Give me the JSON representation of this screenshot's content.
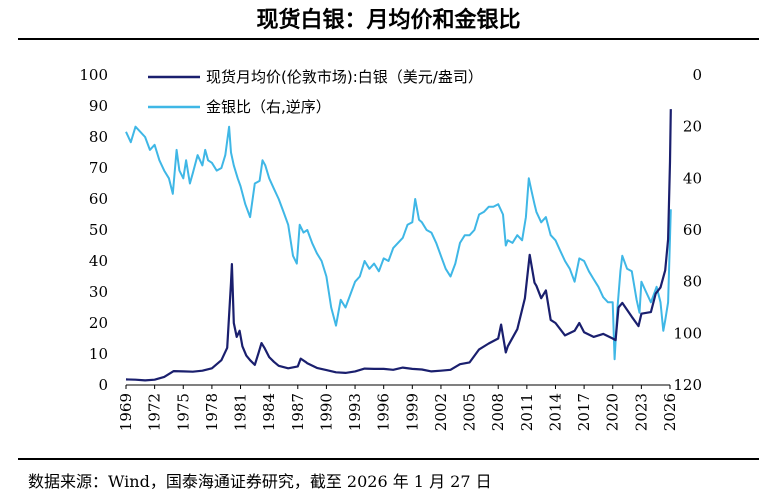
{
  "title": "现货白银：月均价和金银比",
  "source_note": "数据来源：Wind，国泰海通证券研究，截至 2026 年 1 月 27 日",
  "chart_data": {
    "type": "line",
    "x_tick_labels": [
      "1969",
      "1972",
      "1975",
      "1978",
      "1981",
      "1984",
      "1987",
      "1990",
      "1993",
      "1996",
      "1999",
      "2002",
      "2005",
      "2008",
      "2011",
      "2014",
      "2017",
      "2020",
      "2023",
      "2026"
    ],
    "y_left": {
      "ticks": [
        "0",
        "10",
        "20",
        "30",
        "40",
        "50",
        "60",
        "70",
        "80",
        "90",
        "100"
      ],
      "ylim": [
        0,
        100
      ]
    },
    "y_right": {
      "ticks": [
        "0",
        "20",
        "40",
        "60",
        "80",
        "100",
        "120"
      ],
      "ylim": [
        0,
        120
      ],
      "inverted": true
    },
    "series": [
      {
        "name": "现货月均价(伦敦市场):白银（美元/盎司）",
        "axis": "left",
        "color": "#1a1f6e",
        "points": [
          [
            1969.0,
            1.8
          ],
          [
            1970.0,
            1.7
          ],
          [
            1971.0,
            1.5
          ],
          [
            1972.0,
            1.7
          ],
          [
            1973.0,
            2.6
          ],
          [
            1974.0,
            4.5
          ],
          [
            1975.0,
            4.4
          ],
          [
            1976.0,
            4.3
          ],
          [
            1977.0,
            4.6
          ],
          [
            1978.0,
            5.4
          ],
          [
            1979.0,
            8.0
          ],
          [
            1979.6,
            12.0
          ],
          [
            1980.0,
            33.0
          ],
          [
            1980.1,
            39.0
          ],
          [
            1980.3,
            20.0
          ],
          [
            1980.6,
            15.5
          ],
          [
            1980.9,
            17.5
          ],
          [
            1981.2,
            12.5
          ],
          [
            1981.6,
            9.5
          ],
          [
            1982.0,
            8.0
          ],
          [
            1982.5,
            6.5
          ],
          [
            1982.9,
            10.5
          ],
          [
            1983.2,
            13.5
          ],
          [
            1983.5,
            12.0
          ],
          [
            1984.0,
            9.0
          ],
          [
            1984.5,
            7.5
          ],
          [
            1985.0,
            6.2
          ],
          [
            1986.0,
            5.4
          ],
          [
            1987.0,
            6.0
          ],
          [
            1987.3,
            8.5
          ],
          [
            1987.8,
            7.5
          ],
          [
            1988.0,
            7.0
          ],
          [
            1989.0,
            5.5
          ],
          [
            1990.0,
            4.8
          ],
          [
            1991.0,
            4.1
          ],
          [
            1992.0,
            3.9
          ],
          [
            1993.0,
            4.4
          ],
          [
            1994.0,
            5.3
          ],
          [
            1995.0,
            5.2
          ],
          [
            1996.0,
            5.2
          ],
          [
            1997.0,
            4.9
          ],
          [
            1998.0,
            5.6
          ],
          [
            1999.0,
            5.2
          ],
          [
            2000.0,
            5.0
          ],
          [
            2001.0,
            4.4
          ],
          [
            2002.0,
            4.6
          ],
          [
            2003.0,
            4.9
          ],
          [
            2004.0,
            6.7
          ],
          [
            2005.0,
            7.3
          ],
          [
            2006.0,
            11.5
          ],
          [
            2007.0,
            13.4
          ],
          [
            2008.0,
            15.0
          ],
          [
            2008.3,
            19.5
          ],
          [
            2008.8,
            10.5
          ],
          [
            2009.0,
            12.5
          ],
          [
            2010.0,
            18.0
          ],
          [
            2010.8,
            28.0
          ],
          [
            2011.3,
            42.0
          ],
          [
            2011.8,
            33.0
          ],
          [
            2012.0,
            32.0
          ],
          [
            2012.5,
            28.0
          ],
          [
            2013.0,
            30.5
          ],
          [
            2013.5,
            21.0
          ],
          [
            2014.0,
            20.0
          ],
          [
            2015.0,
            16.0
          ],
          [
            2016.0,
            17.5
          ],
          [
            2016.5,
            20.0
          ],
          [
            2017.0,
            17.0
          ],
          [
            2018.0,
            15.5
          ],
          [
            2019.0,
            16.5
          ],
          [
            2020.0,
            15.0
          ],
          [
            2020.3,
            14.5
          ],
          [
            2020.6,
            25.0
          ],
          [
            2021.0,
            26.5
          ],
          [
            2022.0,
            22.0
          ],
          [
            2022.7,
            19.0
          ],
          [
            2023.0,
            23.0
          ],
          [
            2024.0,
            23.5
          ],
          [
            2024.5,
            29.5
          ],
          [
            2025.0,
            31.5
          ],
          [
            2025.5,
            37.0
          ],
          [
            2025.8,
            47.0
          ],
          [
            2026.0,
            72.0
          ],
          [
            2026.08,
            89.0
          ]
        ]
      },
      {
        "name": "金银比（右,逆序）",
        "axis": "right",
        "color": "#3fb7e6",
        "points": [
          [
            1969.0,
            22
          ],
          [
            1969.5,
            26
          ],
          [
            1970.0,
            20
          ],
          [
            1970.5,
            22
          ],
          [
            1971.0,
            24
          ],
          [
            1971.5,
            29
          ],
          [
            1972.0,
            27
          ],
          [
            1972.5,
            33
          ],
          [
            1973.0,
            37
          ],
          [
            1973.5,
            40
          ],
          [
            1973.9,
            46
          ],
          [
            1974.3,
            29
          ],
          [
            1974.6,
            37
          ],
          [
            1975.0,
            40
          ],
          [
            1975.3,
            33
          ],
          [
            1975.7,
            42
          ],
          [
            1976.0,
            38
          ],
          [
            1976.5,
            31
          ],
          [
            1977.0,
            35
          ],
          [
            1977.3,
            29
          ],
          [
            1977.6,
            33
          ],
          [
            1978.0,
            34
          ],
          [
            1978.5,
            37
          ],
          [
            1979.0,
            36
          ],
          [
            1979.4,
            31
          ],
          [
            1979.8,
            20
          ],
          [
            1980.0,
            30
          ],
          [
            1980.3,
            35
          ],
          [
            1980.7,
            40
          ],
          [
            1981.0,
            43
          ],
          [
            1981.5,
            50
          ],
          [
            1982.0,
            55
          ],
          [
            1982.5,
            42
          ],
          [
            1983.0,
            41
          ],
          [
            1983.3,
            33
          ],
          [
            1983.6,
            35
          ],
          [
            1984.0,
            40
          ],
          [
            1984.5,
            44
          ],
          [
            1985.0,
            48
          ],
          [
            1985.5,
            53
          ],
          [
            1986.0,
            58
          ],
          [
            1986.5,
            70
          ],
          [
            1986.9,
            73
          ],
          [
            1987.2,
            58
          ],
          [
            1987.6,
            61
          ],
          [
            1988.0,
            60
          ],
          [
            1988.5,
            65
          ],
          [
            1989.0,
            69
          ],
          [
            1989.5,
            72
          ],
          [
            1990.0,
            78
          ],
          [
            1990.5,
            90
          ],
          [
            1991.0,
            97
          ],
          [
            1991.5,
            87
          ],
          [
            1992.0,
            90
          ],
          [
            1992.5,
            85
          ],
          [
            1993.0,
            80
          ],
          [
            1993.5,
            78
          ],
          [
            1994.0,
            72
          ],
          [
            1994.5,
            75
          ],
          [
            1995.0,
            73
          ],
          [
            1995.5,
            76
          ],
          [
            1996.0,
            71
          ],
          [
            1996.5,
            72
          ],
          [
            1997.0,
            67
          ],
          [
            1997.5,
            65
          ],
          [
            1998.0,
            63
          ],
          [
            1998.5,
            58
          ],
          [
            1999.0,
            57
          ],
          [
            1999.3,
            48
          ],
          [
            1999.7,
            56
          ],
          [
            2000.0,
            57
          ],
          [
            2000.5,
            60
          ],
          [
            2001.0,
            61
          ],
          [
            2001.5,
            65
          ],
          [
            2002.0,
            70
          ],
          [
            2002.5,
            75
          ],
          [
            2003.0,
            78
          ],
          [
            2003.5,
            73
          ],
          [
            2004.0,
            65
          ],
          [
            2004.5,
            62
          ],
          [
            2005.0,
            62
          ],
          [
            2005.5,
            60
          ],
          [
            2006.0,
            54
          ],
          [
            2006.5,
            53
          ],
          [
            2007.0,
            51
          ],
          [
            2007.5,
            51
          ],
          [
            2008.0,
            50
          ],
          [
            2008.5,
            54
          ],
          [
            2008.8,
            66
          ],
          [
            2009.0,
            64
          ],
          [
            2009.5,
            65
          ],
          [
            2010.0,
            62
          ],
          [
            2010.5,
            64
          ],
          [
            2010.9,
            55
          ],
          [
            2011.2,
            40
          ],
          [
            2011.5,
            45
          ],
          [
            2011.8,
            50
          ],
          [
            2012.0,
            53
          ],
          [
            2012.5,
            57
          ],
          [
            2013.0,
            55
          ],
          [
            2013.5,
            62
          ],
          [
            2014.0,
            64
          ],
          [
            2014.5,
            68
          ],
          [
            2015.0,
            72
          ],
          [
            2015.5,
            75
          ],
          [
            2016.0,
            80
          ],
          [
            2016.5,
            71
          ],
          [
            2017.0,
            72
          ],
          [
            2017.5,
            76
          ],
          [
            2018.0,
            79
          ],
          [
            2018.5,
            82
          ],
          [
            2019.0,
            86
          ],
          [
            2019.5,
            88
          ],
          [
            2020.0,
            88
          ],
          [
            2020.2,
            110
          ],
          [
            2020.5,
            90
          ],
          [
            2020.8,
            76
          ],
          [
            2021.0,
            70
          ],
          [
            2021.5,
            75
          ],
          [
            2022.0,
            76
          ],
          [
            2022.5,
            87
          ],
          [
            2022.8,
            92
          ],
          [
            2023.0,
            80
          ],
          [
            2023.5,
            84
          ],
          [
            2024.0,
            88
          ],
          [
            2024.3,
            85
          ],
          [
            2024.6,
            82
          ],
          [
            2025.0,
            88
          ],
          [
            2025.3,
            99
          ],
          [
            2025.5,
            95
          ],
          [
            2025.8,
            88
          ],
          [
            2026.0,
            63
          ],
          [
            2026.08,
            52
          ]
        ]
      }
    ],
    "grid": false,
    "legend_position": "top-left"
  }
}
